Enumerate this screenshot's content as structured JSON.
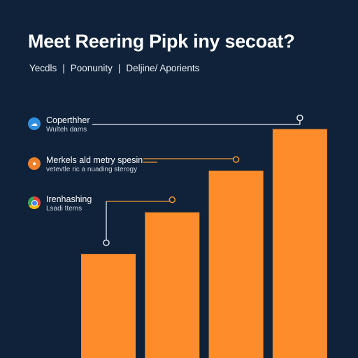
{
  "header": {
    "title": "Meet Reering Pipk iny secoat?",
    "nav": [
      "Yecdls",
      "Poonunity",
      "Deljine/  Aporients"
    ]
  },
  "annotations": [
    {
      "title": "Coperthher",
      "subtitle": "Wulteh dams",
      "icon": "cloud-icon",
      "icon_color": "#2f8fe0"
    },
    {
      "title": "Merkels ald metry spesin",
      "subtitle": "vetevtle ric a nuading sterogy",
      "icon": "badge-icon",
      "icon_color": "#f07f2a"
    },
    {
      "title": "Irenhashing",
      "subtitle": "Lsadi ttems",
      "icon": "chrome-icon",
      "icon_color": "#34a853"
    }
  ],
  "chart_data": {
    "type": "bar",
    "categories": [
      "",
      "",
      "",
      ""
    ],
    "values": [
      30,
      42,
      54,
      66
    ],
    "ylim": [
      0,
      75
    ],
    "grid": false,
    "bar_color": "#ff8c2a",
    "callout_color_highlight": "#f59a2e",
    "callout_color_default": "#e9eef4"
  }
}
